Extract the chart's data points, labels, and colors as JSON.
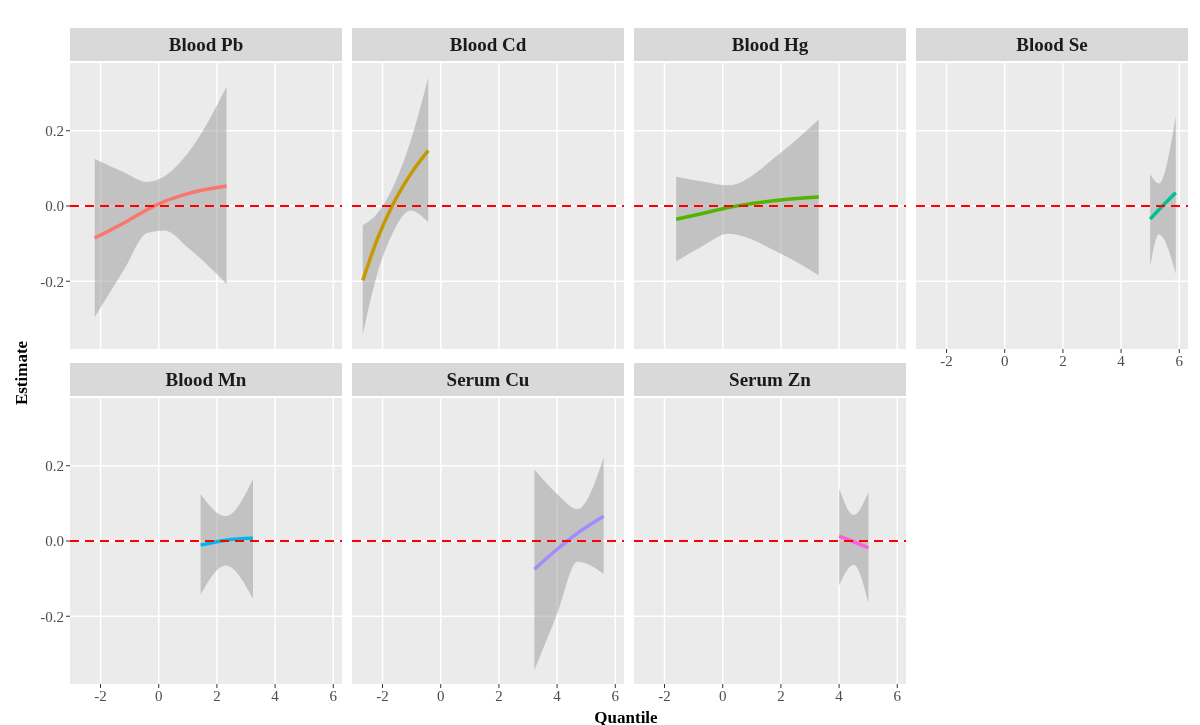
{
  "chart_data": [
    {
      "type": "line",
      "title": "Blood Pb",
      "ylabel": "Estimate",
      "xlim": [
        -3.05,
        6.3
      ],
      "ylim": [
        -0.38,
        0.38
      ],
      "xticks": [
        -2,
        0,
        2,
        4,
        6
      ],
      "yticks": [
        -0.2,
        {
          "value": 0,
          "label": "0.0"
        },
        0.2
      ],
      "grid": true,
      "tick_labels": "y",
      "ref_lines": [
        {
          "axis": "y",
          "value": 0,
          "color": "#ff0000",
          "line_style": "dashed"
        }
      ],
      "series": [
        {
          "color": "#f8766d",
          "x": [
            -2.2,
            -1.2,
            -0.4,
            0.2,
            1,
            2.33
          ],
          "values": [
            -0.085,
            -0.045,
            -0.01,
            0.012,
            0.033,
            0.053
          ],
          "lower": [
            -0.295,
            -0.17,
            -0.072,
            -0.065,
            -0.11,
            -0.207
          ],
          "upper": [
            0.125,
            0.09,
            0.064,
            0.079,
            0.14,
            0.316
          ]
        }
      ]
    },
    {
      "type": "line",
      "title": "Blood Cd",
      "xlim": [
        -3.05,
        6.3
      ],
      "ylim": [
        -0.38,
        0.38
      ],
      "xticks": [
        -2,
        0,
        2,
        4,
        6
      ],
      "yticks": [
        -0.2,
        0,
        0.2
      ],
      "grid": true,
      "tick_labels": false,
      "ref_lines": [
        {
          "axis": "y",
          "value": 0,
          "color": "#ff0000",
          "line_style": "dashed"
        }
      ],
      "series": [
        {
          "color": "#c49a00",
          "x": [
            -2.68,
            -2.18,
            -1.67,
            -1.04,
            -0.43
          ],
          "values": [
            -0.198,
            -0.088,
            0,
            0.084,
            0.147
          ],
          "lower": [
            -0.342,
            -0.18,
            -0.075,
            -0.012,
            -0.043
          ],
          "upper": [
            -0.051,
            -0.02,
            0.045,
            0.172,
            0.34
          ]
        }
      ]
    },
    {
      "type": "line",
      "title": "Blood Hg",
      "xlim": [
        -3.05,
        6.3
      ],
      "ylim": [
        -0.38,
        0.38
      ],
      "xticks": [
        -2,
        0,
        2,
        4,
        6
      ],
      "yticks": [
        -0.2,
        0,
        0.2
      ],
      "grid": true,
      "tick_labels": false,
      "ref_lines": [
        {
          "axis": "y",
          "value": 0,
          "color": "#ff0000",
          "line_style": "dashed"
        }
      ],
      "series": [
        {
          "color": "#53b400",
          "x": [
            -1.6,
            -0.7,
            0.19,
            2.0,
            3.3
          ],
          "values": [
            -0.035,
            -0.02,
            -0.004,
            0.016,
            0.024
          ],
          "lower": [
            -0.147,
            -0.107,
            -0.074,
            -0.127,
            -0.184
          ],
          "upper": [
            0.078,
            0.065,
            0.055,
            0.142,
            0.23
          ]
        }
      ]
    },
    {
      "type": "line",
      "title": "Blood Se",
      "xlim": [
        -3.05,
        6.3
      ],
      "ylim": [
        -0.38,
        0.38
      ],
      "xticks": [
        -2,
        0,
        2,
        4,
        6
      ],
      "yticks": [
        -0.2,
        0,
        0.2
      ],
      "grid": true,
      "tick_labels": "x",
      "ref_lines": [
        {
          "axis": "y",
          "value": 0,
          "color": "#ff0000",
          "line_style": "dashed"
        }
      ],
      "series": [
        {
          "color": "#00c094",
          "x": [
            5.0,
            5.3,
            5.88
          ],
          "values": [
            -0.035,
            -0.01,
            0.035
          ],
          "lower": [
            -0.16,
            -0.075,
            -0.18
          ],
          "upper": [
            0.085,
            0.06,
            0.24
          ]
        }
      ]
    },
    {
      "type": "line",
      "title": "Blood Mn",
      "xlim": [
        -3.05,
        6.3
      ],
      "ylim": [
        -0.38,
        0.38
      ],
      "xticks": [
        -2,
        0,
        2,
        4,
        6
      ],
      "yticks": [
        -0.2,
        {
          "value": 0,
          "label": "0.0"
        },
        0.2
      ],
      "grid": true,
      "ref_lines": [
        {
          "axis": "y",
          "value": 0,
          "color": "#ff0000",
          "line_style": "dashed"
        }
      ],
      "series": [
        {
          "color": "#00b6eb",
          "x": [
            1.44,
            2.3,
            3.24
          ],
          "values": [
            -0.011,
            0.002,
            0.007
          ],
          "lower": [
            -0.143,
            -0.065,
            -0.153
          ],
          "upper": [
            0.124,
            0.066,
            0.164
          ]
        }
      ]
    },
    {
      "type": "line",
      "title": "Serum Cu",
      "xlabel": "Quantile",
      "xlim": [
        -3.05,
        6.3
      ],
      "ylim": [
        -0.38,
        0.38
      ],
      "xticks": [
        -2,
        0,
        2,
        4,
        6
      ],
      "yticks": [
        -0.2,
        0,
        0.2
      ],
      "grid": true,
      "tick_labels": "x",
      "ref_lines": [
        {
          "axis": "y",
          "value": 0,
          "color": "#ff0000",
          "line_style": "dashed"
        }
      ],
      "series": [
        {
          "color": "#a58aff",
          "x": [
            3.22,
            4.0,
            4.7,
            5.6
          ],
          "values": [
            -0.075,
            -0.022,
            0.021,
            0.066
          ],
          "lower": [
            -0.343,
            -0.194,
            -0.055,
            -0.087
          ],
          "upper": [
            0.19,
            0.125,
            0.085,
            0.222
          ]
        }
      ]
    },
    {
      "type": "line",
      "title": "Serum Zn",
      "xlim": [
        -3.05,
        6.3
      ],
      "ylim": [
        -0.38,
        0.38
      ],
      "xticks": [
        -2,
        0,
        2,
        4,
        6
      ],
      "yticks": [
        -0.2,
        0,
        0.2
      ],
      "grid": true,
      "tick_labels": "x",
      "ref_lines": [
        {
          "axis": "y",
          "value": 0,
          "color": "#ff0000",
          "line_style": "dashed"
        }
      ],
      "series": [
        {
          "color": "#fb61d7",
          "x": [
            4.0,
            4.5,
            5.01
          ],
          "values": [
            0.013,
            -0.002,
            -0.018
          ],
          "lower": [
            -0.118,
            -0.063,
            -0.165
          ],
          "upper": [
            0.14,
            0.069,
            0.13
          ]
        }
      ]
    }
  ]
}
